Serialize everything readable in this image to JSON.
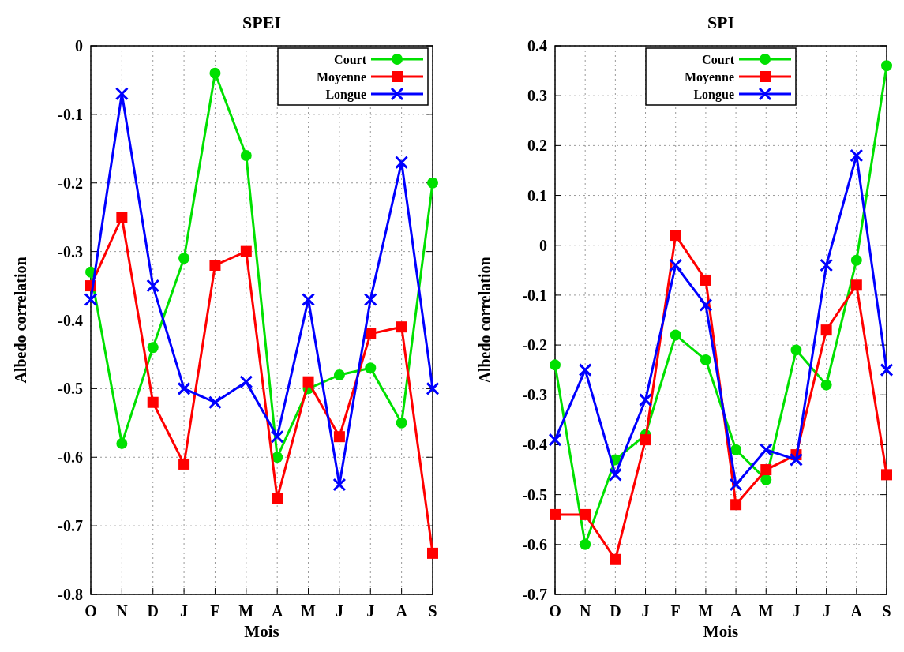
{
  "chart_data": [
    {
      "type": "line",
      "title": "SPEI",
      "xlabel": "Mois",
      "ylabel": "Albedo correlation",
      "categories": [
        "O",
        "N",
        "D",
        "J",
        "F",
        "M",
        "A",
        "M",
        "J",
        "J",
        "A",
        "S"
      ],
      "series": [
        {
          "name": "Court",
          "color": "#00e000",
          "marker": "circle",
          "values": [
            -0.33,
            -0.58,
            -0.44,
            -0.31,
            -0.04,
            -0.16,
            -0.6,
            -0.5,
            -0.48,
            -0.47,
            -0.55,
            -0.2
          ]
        },
        {
          "name": "Moyenne",
          "color": "#ff0000",
          "marker": "square",
          "values": [
            -0.35,
            -0.25,
            -0.52,
            -0.61,
            -0.32,
            -0.3,
            -0.66,
            -0.49,
            -0.57,
            -0.42,
            -0.41,
            -0.74
          ]
        },
        {
          "name": "Longue",
          "color": "#0000ff",
          "marker": "cross",
          "values": [
            -0.37,
            -0.07,
            -0.35,
            -0.5,
            -0.52,
            -0.49,
            -0.57,
            -0.37,
            -0.64,
            -0.37,
            -0.17,
            -0.5
          ]
        }
      ],
      "ylim": [
        -0.8,
        0
      ],
      "yticks": [
        -0.8,
        -0.7,
        -0.6,
        -0.5,
        -0.4,
        -0.3,
        -0.2,
        -0.1,
        0
      ],
      "grid": true,
      "legend": "top right"
    },
    {
      "type": "line",
      "title": "SPI",
      "xlabel": "Mois",
      "ylabel": "Albedo correlation",
      "categories": [
        "O",
        "N",
        "D",
        "J",
        "F",
        "M",
        "A",
        "M",
        "J",
        "J",
        "A",
        "S"
      ],
      "series": [
        {
          "name": "Court",
          "color": "#00e000",
          "marker": "circle",
          "values": [
            -0.24,
            -0.6,
            -0.43,
            -0.38,
            -0.18,
            -0.23,
            -0.41,
            -0.47,
            -0.21,
            -0.28,
            -0.03,
            0.36
          ]
        },
        {
          "name": "Moyenne",
          "color": "#ff0000",
          "marker": "square",
          "values": [
            -0.54,
            -0.54,
            -0.63,
            -0.39,
            0.02,
            -0.07,
            -0.52,
            -0.45,
            -0.42,
            -0.17,
            -0.08,
            -0.46
          ]
        },
        {
          "name": "Longue",
          "color": "#0000ff",
          "marker": "cross",
          "values": [
            -0.39,
            -0.25,
            -0.46,
            -0.31,
            -0.04,
            -0.12,
            -0.48,
            -0.41,
            -0.43,
            -0.04,
            0.18,
            -0.25
          ]
        }
      ],
      "ylim": [
        -0.7,
        0.4
      ],
      "yticks": [
        -0.7,
        -0.6,
        -0.5,
        -0.4,
        -0.3,
        -0.2,
        -0.1,
        0,
        0.1,
        0.2,
        0.3,
        0.4
      ],
      "grid": true,
      "legend": "top"
    }
  ]
}
